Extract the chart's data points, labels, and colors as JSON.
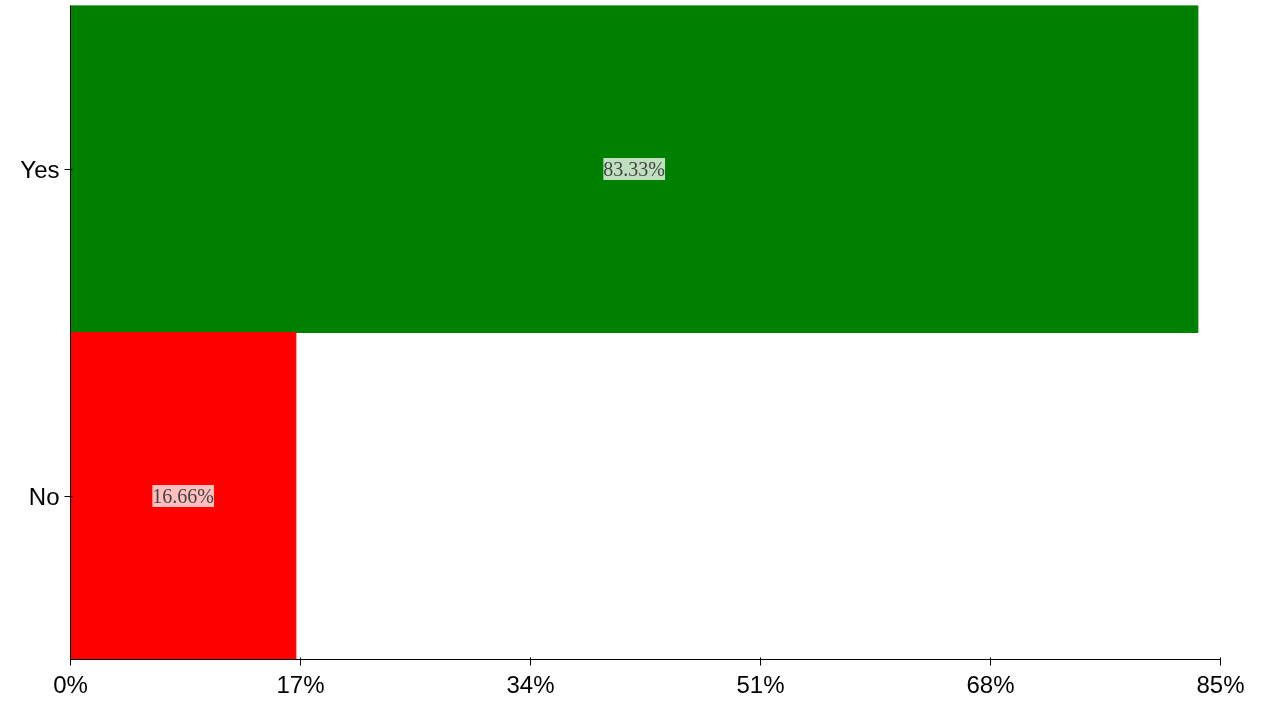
{
  "chart_data": {
    "type": "bar",
    "orientation": "horizontal",
    "categories": [
      "Yes",
      "No"
    ],
    "values": [
      83.33,
      16.66
    ],
    "colors": [
      "#008000",
      "#ff0000"
    ],
    "value_labels": [
      "83.33%",
      "16.66%"
    ],
    "xlim": [
      0,
      85
    ],
    "xticks": [
      {
        "value": 0,
        "label": "0%"
      },
      {
        "value": 17,
        "label": "17%"
      },
      {
        "value": 34,
        "label": "34%"
      },
      {
        "value": 51,
        "label": "51%"
      },
      {
        "value": 68,
        "label": "68%"
      },
      {
        "value": 85,
        "label": "85%"
      }
    ],
    "grid": false
  }
}
